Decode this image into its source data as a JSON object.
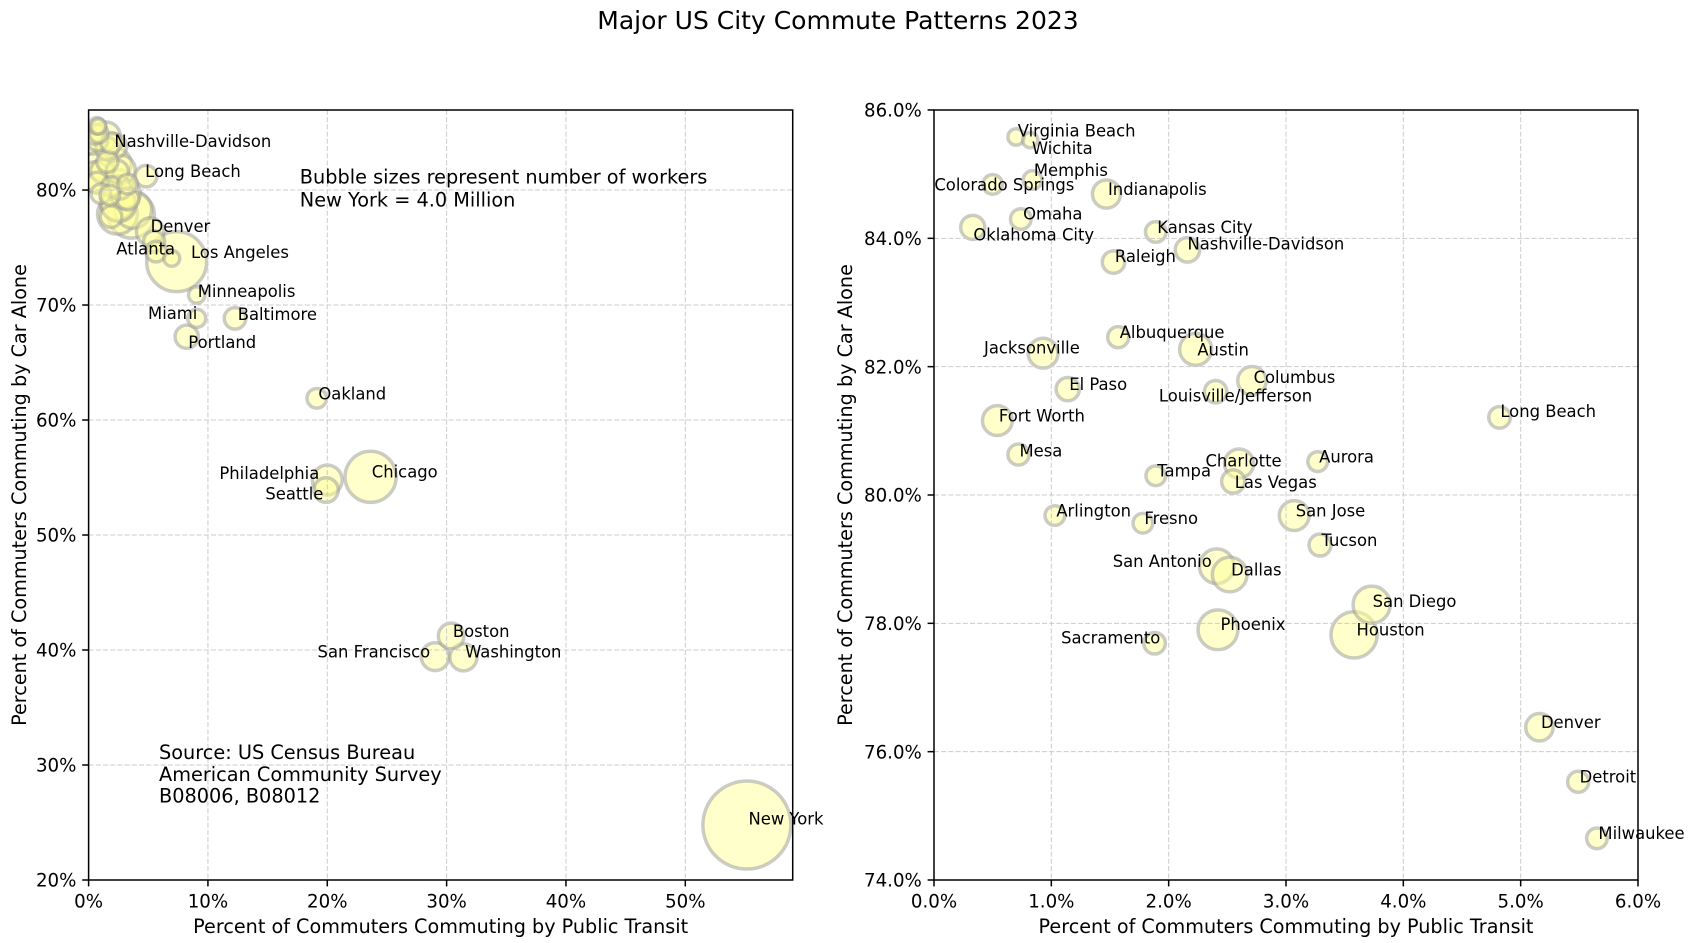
{
  "figure": {
    "title": "Major US City Commute Patterns 2023"
  },
  "colors": {
    "bubble_fill": "#ffff99",
    "bubble_edge": "#999999",
    "grid": "#cccccc",
    "text": "#000000"
  },
  "chart_data": [
    {
      "type": "scatter",
      "title": "",
      "xlabel": "Percent of Commuters Commuting by Public Transit",
      "ylabel": "Percent of Commuters Commuting by Car Alone",
      "xlim": [
        0,
        59.0
      ],
      "ylim": [
        20,
        86.96
      ],
      "xticks": [
        0,
        10,
        20,
        30,
        40,
        50
      ],
      "xtick_labels": [
        "0%",
        "10%",
        "20%",
        "30%",
        "40%",
        "50%"
      ],
      "yticks": [
        20,
        30,
        40,
        50,
        60,
        70,
        80
      ],
      "ytick_labels": [
        "20%",
        "30%",
        "40%",
        "50%",
        "60%",
        "70%",
        "80%"
      ],
      "grid": true,
      "annotations": [
        {
          "lines": [
            "Bubble sizes represent number of workers",
            "New York = 4.0 Million"
          ]
        },
        {
          "lines": [
            "Source: US Census Bureau",
            "American Community Survey",
            "B08006, B08012"
          ]
        }
      ],
      "points": [
        {
          "label": "New York",
          "x": 55.16,
          "y": 24.78,
          "workers_millions": 4.0
        },
        {
          "label": "Los Angeles",
          "x": 7.38,
          "y": 73.77,
          "workers_millions": 1.86
        },
        {
          "label": "Chicago",
          "x": 23.63,
          "y": 55.06,
          "workers_millions": 1.35
        },
        {
          "label": "Philadelphia",
          "x": 20.0,
          "y": 54.78,
          "workers_millions": 0.46
        },
        {
          "label": "Seattle",
          "x": 19.9,
          "y": 53.91,
          "workers_millions": 0.31
        },
        {
          "label": "Oakland",
          "x": 19.12,
          "y": 61.89,
          "workers_millions": 0.2
        },
        {
          "label": "Boston",
          "x": 30.38,
          "y": 41.22,
          "workers_millions": 0.34
        },
        {
          "label": "San Francisco",
          "x": 29.04,
          "y": 39.42,
          "workers_millions": 0.4
        },
        {
          "label": "Washington",
          "x": 31.41,
          "y": 39.37,
          "workers_millions": 0.38
        },
        {
          "label": "Minneapolis",
          "x": 9.06,
          "y": 70.87,
          "workers_millions": 0.14
        },
        {
          "label": "Miami",
          "x": 9.06,
          "y": 68.84,
          "workers_millions": 0.17
        },
        {
          "label": "Baltimore",
          "x": 12.27,
          "y": 68.84,
          "workers_millions": 0.24
        },
        {
          "label": "Portland",
          "x": 8.22,
          "y": 67.24,
          "workers_millions": 0.28
        },
        {
          "label": "Atlanta",
          "x": 6.97,
          "y": 74.06,
          "workers_millions": 0.13
        },
        {
          "label": "Denver",
          "x": 5.16,
          "y": 76.38,
          "workers_millions": 0.39
        },
        {
          "label": "Long Beach",
          "x": 4.82,
          "y": 81.21,
          "workers_millions": 0.24
        },
        {
          "label": "Nashville-Davidson",
          "x": 2.16,
          "y": 83.82,
          "workers_millions": 0.31
        },
        {
          "x": 0.7,
          "y": 85.58,
          "workers_millions": 0.14
        },
        {
          "x": 0.82,
          "y": 85.53,
          "workers_millions": 0.12
        },
        {
          "x": 0.84,
          "y": 84.91,
          "workers_millions": 0.18
        },
        {
          "x": 0.5,
          "y": 84.84,
          "workers_millions": 0.2
        },
        {
          "x": 1.47,
          "y": 84.69,
          "workers_millions": 0.41
        },
        {
          "x": 0.74,
          "y": 84.3,
          "workers_millions": 0.22
        },
        {
          "x": 0.33,
          "y": 84.17,
          "workers_millions": 0.3
        },
        {
          "x": 1.89,
          "y": 84.1,
          "workers_millions": 0.22
        },
        {
          "x": 1.53,
          "y": 83.63,
          "workers_millions": 0.26
        },
        {
          "x": 1.57,
          "y": 82.46,
          "workers_millions": 0.23
        },
        {
          "x": 0.93,
          "y": 82.21,
          "workers_millions": 0.46
        },
        {
          "x": 2.23,
          "y": 82.27,
          "workers_millions": 0.53
        },
        {
          "x": 2.71,
          "y": 81.78,
          "workers_millions": 0.42
        },
        {
          "x": 1.14,
          "y": 81.65,
          "workers_millions": 0.28
        },
        {
          "x": 2.4,
          "y": 81.61,
          "workers_millions": 0.26
        },
        {
          "x": 0.54,
          "y": 81.16,
          "workers_millions": 0.46
        },
        {
          "x": 0.72,
          "y": 80.63,
          "workers_millions": 0.23
        },
        {
          "x": 1.89,
          "y": 80.3,
          "workers_millions": 0.2
        },
        {
          "x": 2.6,
          "y": 80.49,
          "workers_millions": 0.44
        },
        {
          "x": 2.55,
          "y": 80.21,
          "workers_millions": 0.28
        },
        {
          "x": 3.27,
          "y": 80.52,
          "workers_millions": 0.2
        },
        {
          "x": 1.03,
          "y": 79.68,
          "workers_millions": 0.2
        },
        {
          "x": 1.78,
          "y": 79.56,
          "workers_millions": 0.2
        },
        {
          "x": 3.07,
          "y": 79.68,
          "workers_millions": 0.46
        },
        {
          "x": 3.29,
          "y": 79.22,
          "workers_millions": 0.25
        },
        {
          "x": 2.41,
          "y": 78.89,
          "workers_millions": 0.62
        },
        {
          "x": 2.52,
          "y": 78.76,
          "workers_millions": 0.62
        },
        {
          "x": 3.73,
          "y": 78.29,
          "workers_millions": 0.71
        },
        {
          "x": 2.42,
          "y": 77.9,
          "workers_millions": 0.82
        },
        {
          "x": 3.58,
          "y": 77.82,
          "workers_millions": 1.1
        },
        {
          "x": 1.88,
          "y": 77.69,
          "workers_millions": 0.24
        },
        {
          "x": 5.49,
          "y": 75.53,
          "workers_millions": 0.23
        },
        {
          "x": 5.65,
          "y": 74.65,
          "workers_millions": 0.22
        }
      ]
    },
    {
      "type": "scatter",
      "title": "",
      "xlabel": "Percent of Commuters Commuting by Public Transit",
      "ylabel": "Percent of Commuters Commuting by Car Alone",
      "xlim": [
        0,
        6
      ],
      "ylim": [
        74,
        86
      ],
      "xticks": [
        0,
        1,
        2,
        3,
        4,
        5,
        6
      ],
      "xtick_labels": [
        "0.0%",
        "1.0%",
        "2.0%",
        "3.0%",
        "4.0%",
        "5.0%",
        "6.0%"
      ],
      "yticks": [
        74,
        76,
        78,
        80,
        82,
        84,
        86
      ],
      "ytick_labels": [
        "74.0%",
        "76.0%",
        "78.0%",
        "80.0%",
        "82.0%",
        "84.0%",
        "86.0%"
      ],
      "grid": true,
      "annotations": [],
      "points": [
        {
          "label": "Virginia Beach",
          "x": 0.7,
          "y": 85.58,
          "workers_millions": 0.14
        },
        {
          "label": "Wichita",
          "x": 0.82,
          "y": 85.53,
          "workers_millions": 0.12
        },
        {
          "label": "Memphis",
          "x": 0.84,
          "y": 84.91,
          "workers_millions": 0.18
        },
        {
          "label": "Colorado Springs",
          "x": 0.5,
          "y": 84.84,
          "workers_millions": 0.2
        },
        {
          "label": "Indianapolis",
          "x": 1.47,
          "y": 84.69,
          "workers_millions": 0.41
        },
        {
          "label": "Omaha",
          "x": 0.74,
          "y": 84.3,
          "workers_millions": 0.22
        },
        {
          "label": "Oklahoma City",
          "x": 0.33,
          "y": 84.17,
          "workers_millions": 0.3
        },
        {
          "label": "Kansas City",
          "x": 1.89,
          "y": 84.1,
          "workers_millions": 0.22
        },
        {
          "label": "Nashville-Davidson",
          "x": 2.16,
          "y": 83.82,
          "workers_millions": 0.31
        },
        {
          "label": "Raleigh",
          "x": 1.53,
          "y": 83.63,
          "workers_millions": 0.26
        },
        {
          "label": "Albuquerque",
          "x": 1.57,
          "y": 82.46,
          "workers_millions": 0.23
        },
        {
          "label": "Jacksonville",
          "x": 0.93,
          "y": 82.21,
          "workers_millions": 0.46
        },
        {
          "label": "Austin",
          "x": 2.23,
          "y": 82.27,
          "workers_millions": 0.53
        },
        {
          "label": "Columbus",
          "x": 2.71,
          "y": 81.78,
          "workers_millions": 0.42
        },
        {
          "label": "El Paso",
          "x": 1.14,
          "y": 81.65,
          "workers_millions": 0.28
        },
        {
          "label": "Louisville/Jefferson",
          "x": 2.4,
          "y": 81.61,
          "workers_millions": 0.26
        },
        {
          "label": "Fort Worth",
          "x": 0.54,
          "y": 81.16,
          "workers_millions": 0.46
        },
        {
          "label": "Mesa",
          "x": 0.72,
          "y": 80.63,
          "workers_millions": 0.23
        },
        {
          "label": "Tampa",
          "x": 1.89,
          "y": 80.3,
          "workers_millions": 0.2
        },
        {
          "label": "Charlotte",
          "x": 2.6,
          "y": 80.49,
          "workers_millions": 0.44
        },
        {
          "label": "Las Vegas",
          "x": 2.55,
          "y": 80.21,
          "workers_millions": 0.28
        },
        {
          "label": "Aurora",
          "x": 3.27,
          "y": 80.52,
          "workers_millions": 0.2
        },
        {
          "label": "Arlington",
          "x": 1.03,
          "y": 79.68,
          "workers_millions": 0.2
        },
        {
          "label": "Fresno",
          "x": 1.78,
          "y": 79.56,
          "workers_millions": 0.2
        },
        {
          "label": "San Jose",
          "x": 3.07,
          "y": 79.68,
          "workers_millions": 0.46
        },
        {
          "label": "Tucson",
          "x": 3.29,
          "y": 79.22,
          "workers_millions": 0.25
        },
        {
          "label": "San Antonio",
          "x": 2.41,
          "y": 78.89,
          "workers_millions": 0.62
        },
        {
          "label": "Dallas",
          "x": 2.52,
          "y": 78.76,
          "workers_millions": 0.62
        },
        {
          "label": "San Diego",
          "x": 3.73,
          "y": 78.29,
          "workers_millions": 0.71
        },
        {
          "label": "Phoenix",
          "x": 2.42,
          "y": 77.9,
          "workers_millions": 0.82
        },
        {
          "label": "Houston",
          "x": 3.58,
          "y": 77.82,
          "workers_millions": 1.1
        },
        {
          "label": "Sacramento",
          "x": 1.88,
          "y": 77.69,
          "workers_millions": 0.24
        },
        {
          "label": "Long Beach",
          "x": 4.82,
          "y": 81.21,
          "workers_millions": 0.24
        },
        {
          "label": "Denver",
          "x": 5.16,
          "y": 76.38,
          "workers_millions": 0.39
        },
        {
          "label": "Detroit",
          "x": 5.49,
          "y": 75.53,
          "workers_millions": 0.23
        },
        {
          "label": "Milwaukee",
          "x": 5.65,
          "y": 74.65,
          "workers_millions": 0.22
        }
      ]
    }
  ]
}
